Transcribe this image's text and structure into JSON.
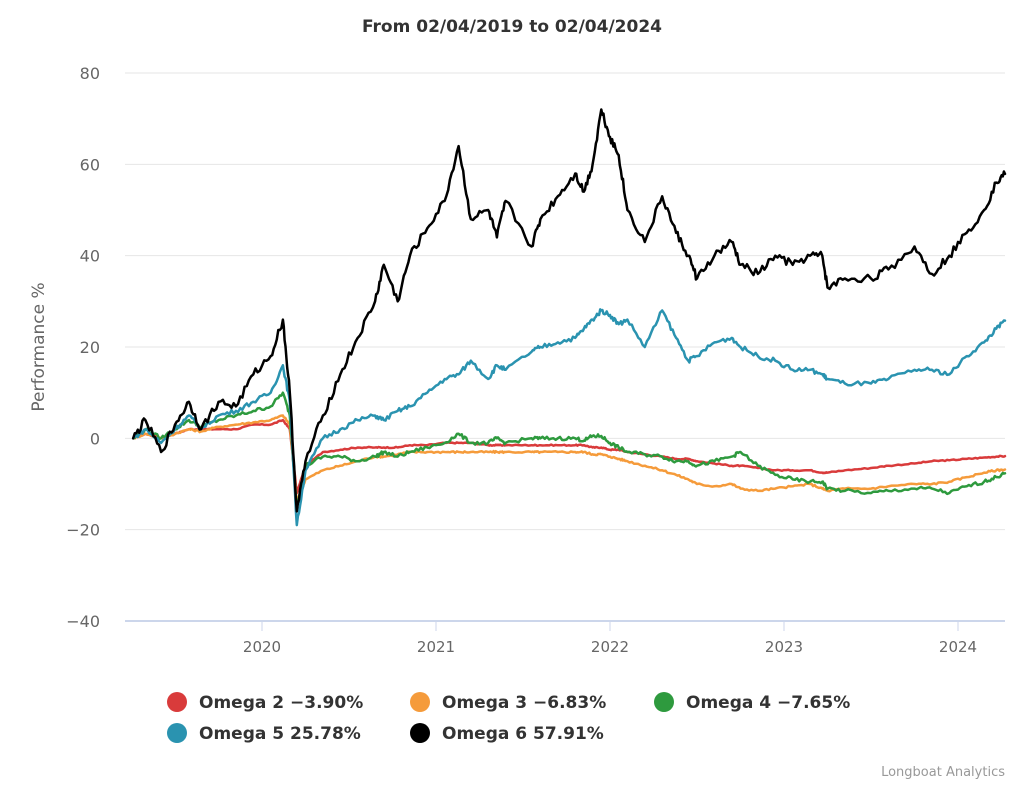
{
  "chart_data": {
    "type": "line",
    "title": "From 02/04/2019 to 02/04/2024",
    "xlabel": "",
    "ylabel": "Performance %",
    "ylim": [
      -40,
      80
    ],
    "yticks": [
      80,
      60,
      40,
      20,
      0,
      -20,
      -40
    ],
    "ytick_labels": [
      "80",
      "60",
      "40",
      "20",
      "0",
      "−20",
      "−40"
    ],
    "xlim": [
      2019.25,
      2024.3
    ],
    "xticks": [
      2020,
      2021,
      2022,
      2023,
      2024
    ],
    "xtick_labels": [
      "2020",
      "2021",
      "2022",
      "2023",
      "2024"
    ],
    "grid": true,
    "legend_position": "bottom-center",
    "credit": "Longboat Analytics",
    "x": [
      2019.26,
      2019.33,
      2019.42,
      2019.5,
      2019.58,
      2019.65,
      2019.75,
      2019.85,
      2019.95,
      2020.05,
      2020.12,
      2020.16,
      2020.2,
      2020.25,
      2020.35,
      2020.45,
      2020.55,
      2020.65,
      2020.7,
      2020.78,
      2020.85,
      2020.95,
      2021.05,
      2021.13,
      2021.2,
      2021.3,
      2021.35,
      2021.4,
      2021.55,
      2021.6,
      2021.7,
      2021.8,
      2021.85,
      2021.9,
      2021.95,
      2022.0,
      2022.05,
      2022.1,
      2022.2,
      2022.3,
      2022.38,
      2022.45,
      2022.5,
      2022.6,
      2022.7,
      2022.75,
      2022.85,
      2022.95,
      2023.05,
      2023.15,
      2023.22,
      2023.25,
      2023.35,
      2023.5,
      2023.6,
      2023.75,
      2023.85,
      2023.95,
      2024.05,
      2024.15,
      2024.22,
      2024.27
    ],
    "series": [
      {
        "name": "Omega 2",
        "legend": "Omega 2 −3.90%",
        "color": "#d93b3b",
        "values": [
          0,
          1,
          0,
          1,
          2,
          2,
          2,
          2,
          3,
          3,
          4,
          2,
          -12,
          -6,
          -3,
          -2.5,
          -2,
          -2,
          -2,
          -2,
          -1.5,
          -1.5,
          -1,
          -1,
          -1,
          -1.5,
          -1.5,
          -1.5,
          -1.5,
          -1.5,
          -1.5,
          -1.5,
          -1.5,
          -2,
          -2,
          -2.5,
          -2.5,
          -3,
          -3.5,
          -4,
          -4.5,
          -4.5,
          -5,
          -5.5,
          -6,
          -6,
          -6.5,
          -7,
          -7,
          -7,
          -7.5,
          -7.5,
          -7,
          -6.5,
          -6,
          -5.5,
          -5,
          -4.8,
          -4.5,
          -4.2,
          -4,
          -3.9
        ]
      },
      {
        "name": "Omega 3",
        "legend": "Omega 3 −6.83%",
        "color": "#f59b3b",
        "values": [
          0,
          1,
          0,
          1,
          2,
          1.5,
          2.5,
          3,
          3.5,
          4,
          5,
          3,
          -14,
          -9,
          -7,
          -6,
          -5,
          -4,
          -4,
          -3.5,
          -3,
          -3,
          -3,
          -3,
          -3,
          -3,
          -3,
          -3,
          -3,
          -3,
          -3,
          -3,
          -3,
          -3.5,
          -3.5,
          -4,
          -4.5,
          -5,
          -6,
          -7,
          -8,
          -9,
          -10,
          -10.5,
          -10,
          -11,
          -11.5,
          -11,
          -10.5,
          -10,
          -11,
          -11.5,
          -11,
          -11,
          -10.5,
          -10,
          -10,
          -9.5,
          -8.5,
          -7.5,
          -7,
          -6.83
        ]
      },
      {
        "name": "Omega 4",
        "legend": "Omega 4 −7.65%",
        "color": "#2e9a3e",
        "values": [
          0,
          2,
          0,
          2,
          4,
          2.5,
          4,
          5,
          6,
          7,
          10,
          5,
          -15,
          -6,
          -4,
          -4,
          -5,
          -4,
          -3,
          -4,
          -3,
          -2,
          -1,
          1,
          -1,
          -1,
          0,
          -1,
          0,
          0,
          0,
          0,
          -0.5,
          0.5,
          0.5,
          -1,
          -2,
          -3,
          -3.5,
          -4,
          -5,
          -5,
          -6,
          -5,
          -4,
          -3,
          -6,
          -8,
          -9,
          -9.5,
          -9.5,
          -11,
          -11.5,
          -12,
          -11.5,
          -11,
          -11,
          -12,
          -10.5,
          -9.5,
          -8.5,
          -7.65
        ]
      },
      {
        "name": "Omega 5",
        "legend": "Omega 5 25.78%",
        "color": "#2a93b0",
        "values": [
          0,
          2,
          -1,
          2,
          5,
          2,
          5,
          6,
          8,
          10,
          16,
          8,
          -19,
          -7,
          0,
          2,
          4,
          5,
          4,
          6,
          7,
          10,
          13,
          14,
          17,
          13,
          16,
          15,
          19,
          20,
          21,
          22,
          24,
          26,
          28,
          27,
          25,
          26,
          20,
          28,
          22,
          17,
          18,
          21,
          22,
          20,
          18,
          17,
          15,
          15,
          14,
          13,
          12,
          12,
          13,
          15,
          15,
          14,
          18,
          21,
          24,
          25.78
        ]
      },
      {
        "name": "Omega 6",
        "legend": "Omega 6 57.91%",
        "color": "#000000",
        "values": [
          0,
          4,
          -3,
          3,
          8,
          2,
          8,
          7,
          14,
          18,
          26,
          10,
          -16,
          -5,
          5,
          14,
          22,
          30,
          38,
          30,
          40,
          46,
          52,
          64,
          48,
          50,
          44,
          52,
          42,
          48,
          53,
          58,
          54,
          60,
          72,
          66,
          62,
          50,
          43,
          53,
          45,
          40,
          35,
          40,
          43,
          38,
          36,
          40,
          38,
          40,
          40,
          33,
          35,
          35,
          37,
          42,
          36,
          40,
          45,
          50,
          56,
          57.91
        ]
      }
    ]
  }
}
